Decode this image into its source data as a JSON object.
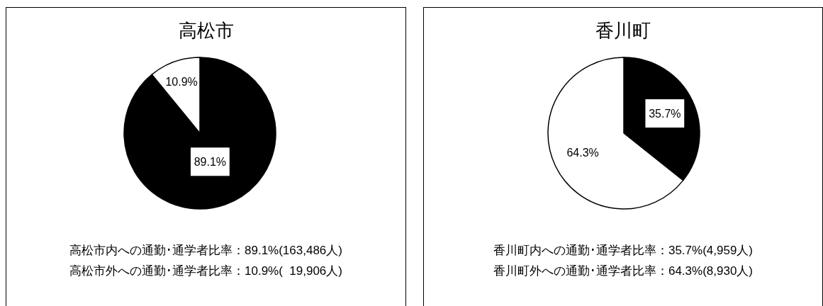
{
  "chart_data": [
    {
      "type": "pie",
      "title": "高松市",
      "categories": [
        null,
        null
      ],
      "values": [
        89.1,
        10.9
      ],
      "colors": [
        "#000000",
        "#ffffff"
      ],
      "value_labels": [
        "89.1%",
        "10.9%"
      ],
      "annotations": [
        "高松市内への通勤･通学者比率：89.1%(163,486人)",
        "高松市外への通勤･通学者比率：10.9%(  19,906人)"
      ]
    },
    {
      "type": "pie",
      "title": "香川町",
      "categories": [
        null,
        null
      ],
      "values": [
        35.7,
        64.3
      ],
      "colors": [
        "#000000",
        "#ffffff"
      ],
      "value_labels": [
        "35.7%",
        "64.3%"
      ],
      "annotations": [
        "香川町内への通勤･通学者比率：35.7%(4,959人)",
        "香川町外への通勤･通学者比率：64.3%(8,930人)"
      ]
    }
  ]
}
